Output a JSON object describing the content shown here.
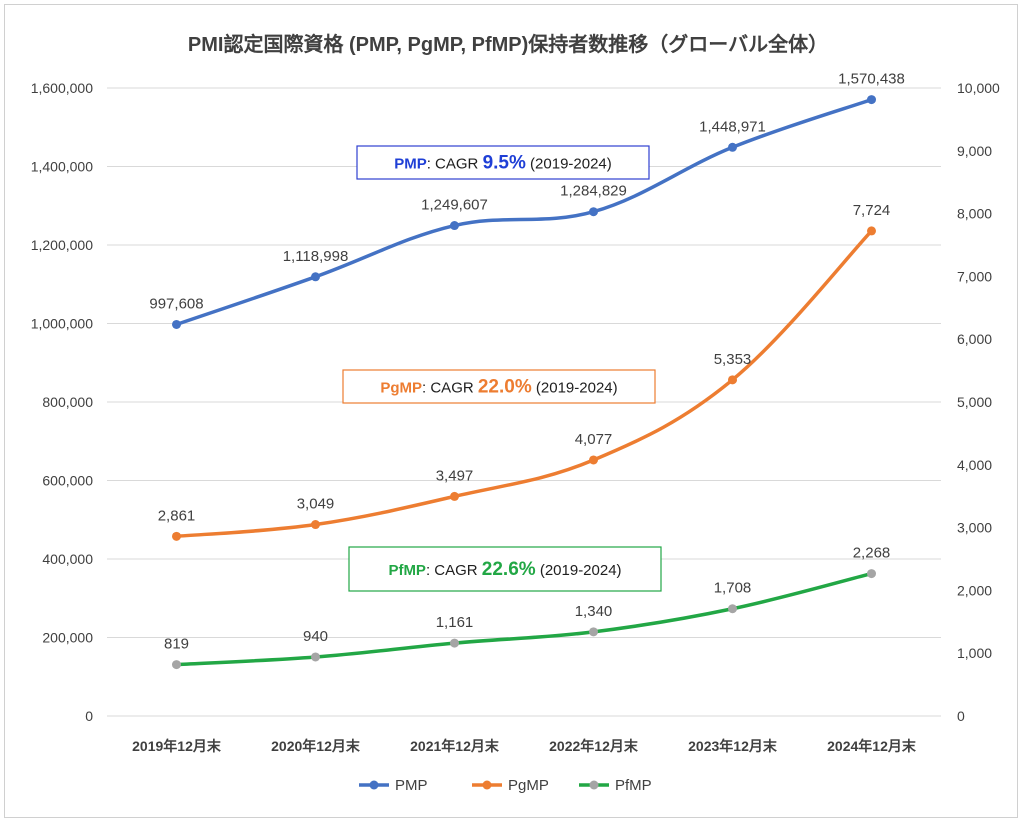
{
  "chart_data": {
    "type": "line",
    "title": "PMI認定国際資格 (PMP, PgMP, PfMP)保持者数推移（グローバル全体）",
    "categories": [
      "2019年12月末",
      "2020年12月末",
      "2021年12月末",
      "2022年12月末",
      "2023年12月末",
      "2024年12月末"
    ],
    "y_left": {
      "ticks": [
        "0",
        "200,000",
        "400,000",
        "600,000",
        "800,000",
        "1,000,000",
        "1,200,000",
        "1,400,000",
        "1,600,000"
      ],
      "ylim": [
        0,
        1600000
      ]
    },
    "y_right": {
      "ticks": [
        "0",
        "1,000",
        "2,000",
        "3,000",
        "4,000",
        "5,000",
        "6,000",
        "7,000",
        "8,000",
        "9,000",
        "10,000"
      ],
      "ylim": [
        0,
        10000
      ]
    },
    "grid": true,
    "legend_position": "bottom",
    "series": [
      {
        "name": "PMP",
        "axis": "left",
        "color": "#4472C4",
        "values": [
          997608,
          1118998,
          1249607,
          1284829,
          1448971,
          1570438
        ],
        "labels": [
          "997,608",
          "1,118,998",
          "1,249,607",
          "1,284,829",
          "1,448,971",
          "1,570,438"
        ]
      },
      {
        "name": "PgMP",
        "axis": "right",
        "color": "#ED7D31",
        "values": [
          2861,
          3049,
          3497,
          4077,
          5353,
          7724
        ],
        "labels": [
          "2,861",
          "3,049",
          "3,497",
          "4,077",
          "5,353",
          "7,724"
        ]
      },
      {
        "name": "PfMP",
        "axis": "right",
        "color": "#22A745",
        "marker_color": "#A5A5A5",
        "values": [
          819,
          940,
          1161,
          1340,
          1708,
          2268
        ],
        "labels": [
          "819",
          "940",
          "1,161",
          "1,340",
          "1,708",
          "2,268"
        ]
      }
    ],
    "annotations": [
      {
        "name": "PMP",
        "prefix": ": CAGR ",
        "value": "9.5%",
        "suffix": " (2019-2024)",
        "color": "#1F3FD6",
        "border": "#2F3FD0"
      },
      {
        "name": "PgMP",
        "prefix": ": CAGR ",
        "value": "22.0%",
        "suffix": " (2019-2024)",
        "color": "#ED7D31",
        "border": "#ED7D31"
      },
      {
        "name": "PfMP",
        "prefix": ": CAGR ",
        "value": "22.6%",
        "suffix": " (2019-2024)",
        "color": "#22A745",
        "border": "#22A745"
      }
    ]
  }
}
